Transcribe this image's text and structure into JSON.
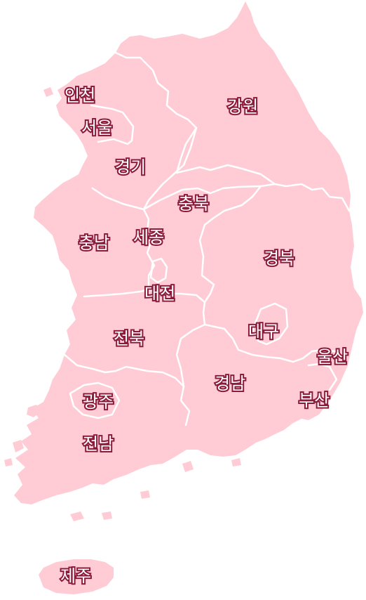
{
  "colors": {
    "land": "#ffccd6",
    "border": "#ffffff",
    "label_fill": "#ffffff",
    "label_outline": "#8c1a3a"
  },
  "regions": {
    "incheon": "인천",
    "seoul": "서울",
    "gyeonggi": "경기",
    "gangwon": "강원",
    "chungbuk": "충북",
    "chungnam": "충남",
    "sejong": "세종",
    "daejeon": "대전",
    "gyeongbuk": "경북",
    "daegu": "대구",
    "jeonbuk": "전북",
    "gyeongnam": "경남",
    "ulsan": "울산",
    "busan": "부산",
    "gwangju": "광주",
    "jeonnam": "전남",
    "jeju": "제주"
  }
}
